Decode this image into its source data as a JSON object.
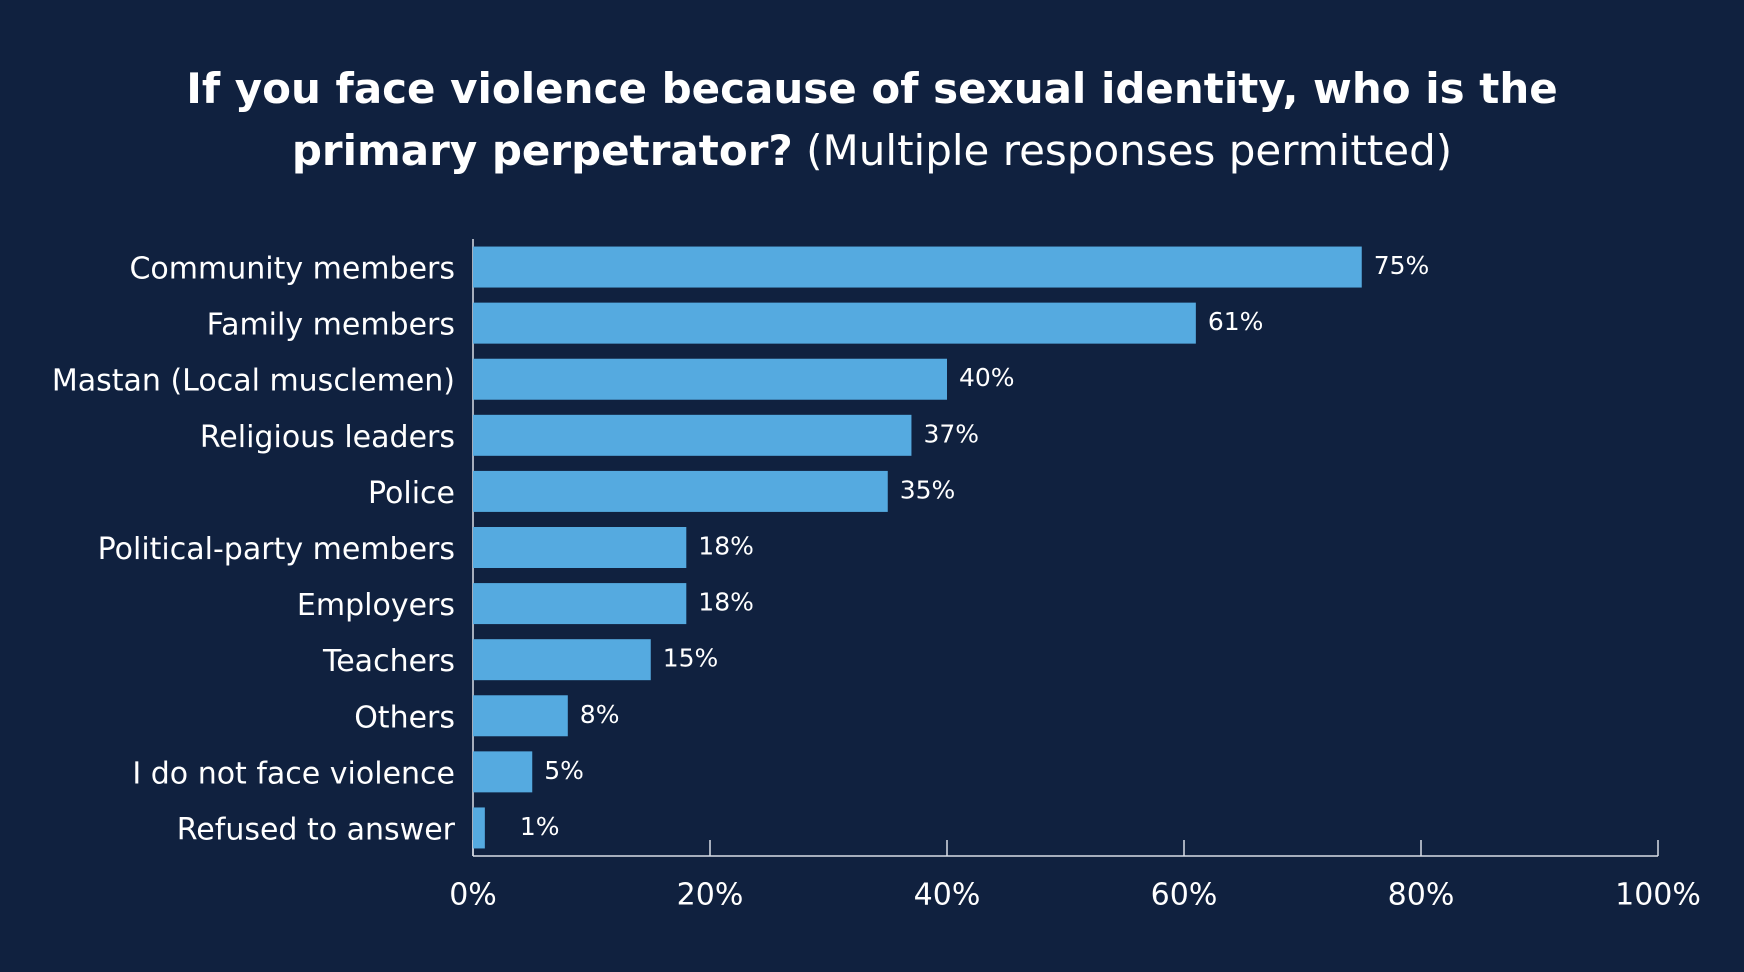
{
  "chart_data": {
    "type": "barh",
    "title": "If you face violence because of sexual identity, who is the primary perpetrator?",
    "subtitle": "(Multiple responses permitted)",
    "categories": [
      "Community members",
      "Family members",
      "Mastan (Local musclemen)",
      "Religious leaders",
      "Police",
      "Political-party members",
      "Employers",
      "Teachers",
      "Others",
      "I do not face violence",
      "Refused to answer"
    ],
    "values": [
      75,
      61,
      40,
      37,
      35,
      18,
      18,
      15,
      8,
      5,
      1
    ],
    "value_labels": [
      "75%",
      "61%",
      "40%",
      "37%",
      "35%",
      "18%",
      "18%",
      "15%",
      "8%",
      "5%",
      "1%"
    ],
    "color": "#55aae0",
    "xlim": [
      0,
      100
    ],
    "xticks": [
      {
        "value": 0,
        "label": "0%"
      },
      {
        "value": 20,
        "label": "20%"
      },
      {
        "value": 40,
        "label": "40%"
      },
      {
        "value": 60,
        "label": "60%"
      },
      {
        "value": 80,
        "label": "80%"
      },
      {
        "value": 100,
        "label": "100%"
      }
    ]
  }
}
